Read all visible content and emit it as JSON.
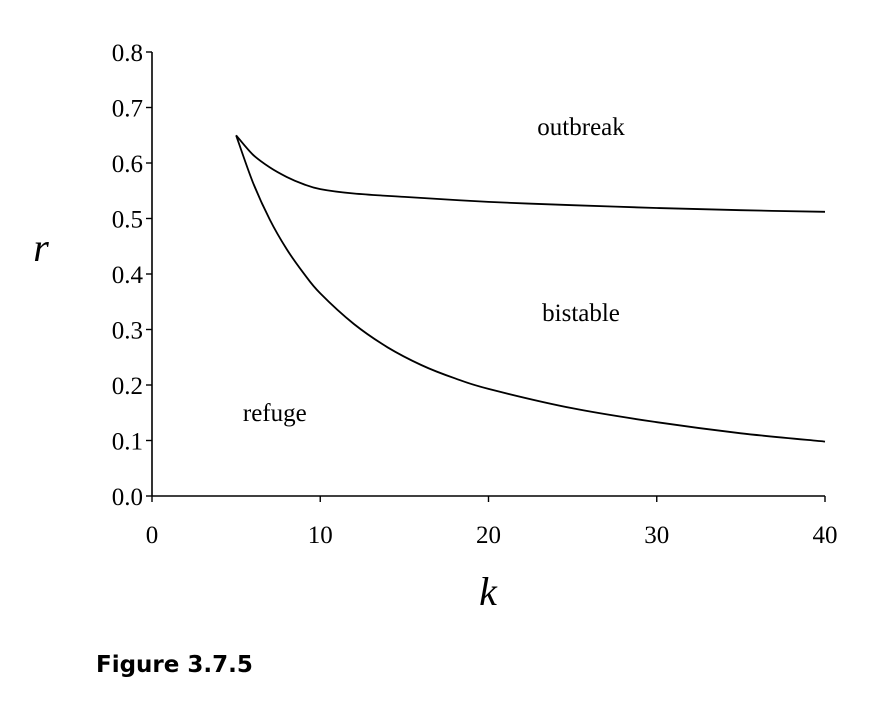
{
  "caption": "Figure 3.7.5",
  "chart_data": {
    "type": "line",
    "xlabel": "k",
    "ylabel": "r",
    "xlim": [
      0,
      40
    ],
    "ylim": [
      0,
      0.8
    ],
    "xticks": [
      "0",
      "10",
      "20",
      "30",
      "40"
    ],
    "yticks": [
      "0.0",
      "0.1",
      "0.2",
      "0.3",
      "0.4",
      "0.5",
      "0.6",
      "0.7",
      "0.8"
    ],
    "grid": false,
    "series": [
      {
        "x": [
          5,
          6,
          7,
          8,
          9,
          10,
          12,
          15,
          20,
          25,
          30,
          35,
          40
        ],
        "values": [
          0.65,
          0.615,
          0.592,
          0.575,
          0.562,
          0.553,
          0.545,
          0.539,
          0.53,
          0.524,
          0.519,
          0.515,
          0.512
        ]
      },
      {
        "x": [
          5,
          6,
          7,
          8,
          9,
          10,
          12,
          14,
          16,
          18,
          20,
          25,
          30,
          35,
          40
        ],
        "values": [
          0.65,
          0.565,
          0.498,
          0.445,
          0.402,
          0.365,
          0.31,
          0.268,
          0.236,
          0.212,
          0.193,
          0.158,
          0.133,
          0.113,
          0.098
        ]
      }
    ],
    "annotations": [
      {
        "text": "outbreak",
        "x": 25.5,
        "y": 0.665
      },
      {
        "text": "bistable",
        "x": 25.5,
        "y": 0.33
      },
      {
        "text": "refuge",
        "x": 7.3,
        "y": 0.15
      }
    ]
  }
}
